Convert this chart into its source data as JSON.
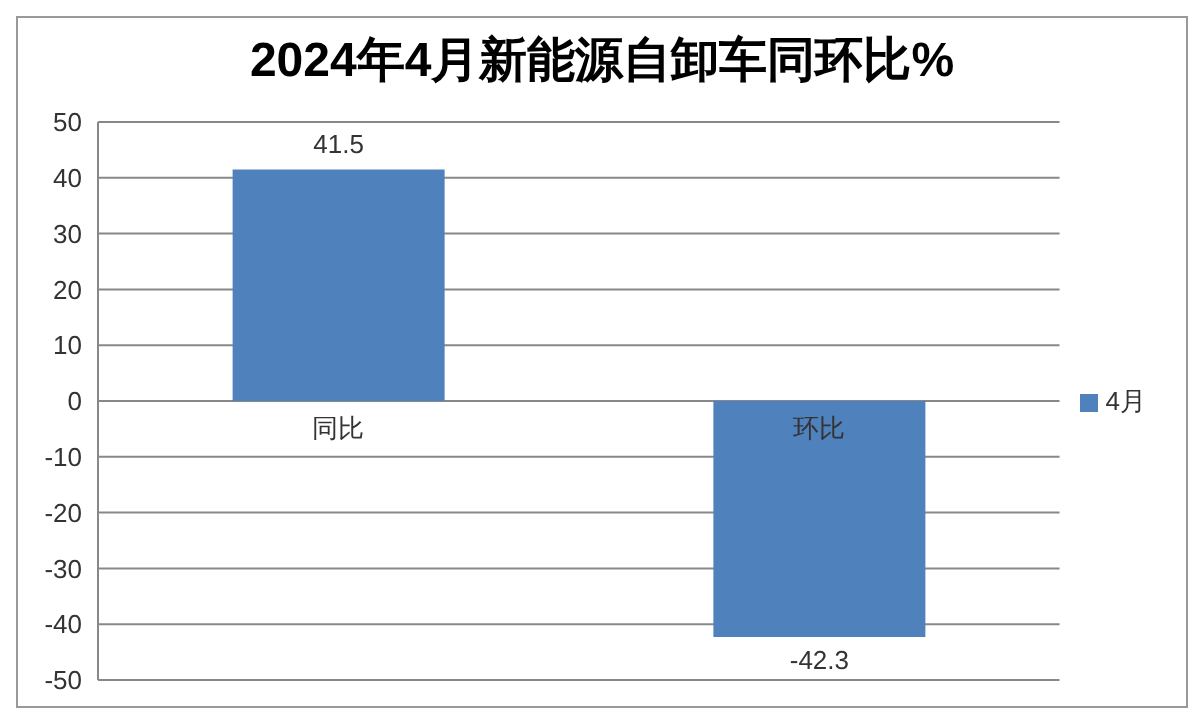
{
  "chart_data": {
    "type": "bar",
    "title": "2024年4月新能源自卸车同环比%",
    "categories": [
      "同比",
      "环比"
    ],
    "series": [
      {
        "name": "4月",
        "color": "#4f81bd",
        "values": [
          41.5,
          -42.3
        ]
      }
    ],
    "ylim": [
      -50,
      50
    ],
    "yticks": [
      -50,
      -40,
      -30,
      -20,
      -10,
      0,
      10,
      20,
      30,
      40,
      50
    ],
    "grid": "y",
    "legend": "right",
    "data_labels": true
  }
}
